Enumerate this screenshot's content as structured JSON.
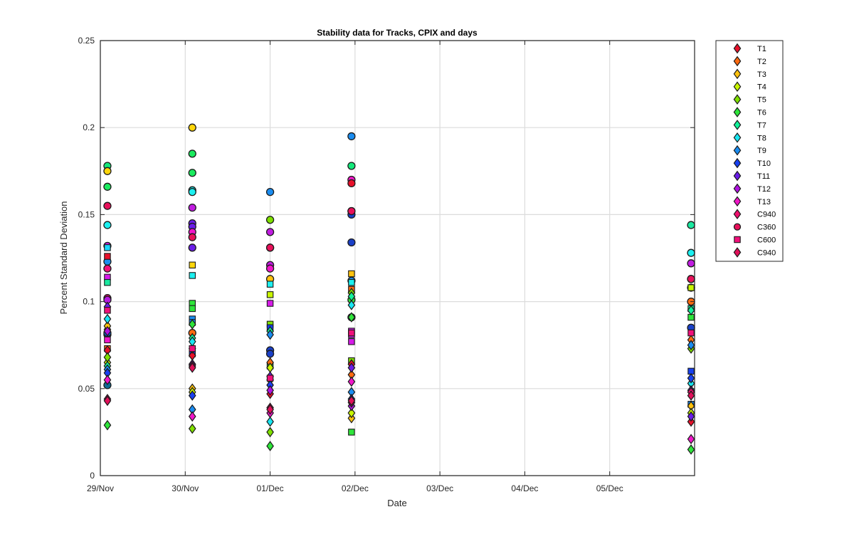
{
  "chart_data": {
    "type": "scatter",
    "title": "Stability data for Tracks, CPIX and days",
    "xlabel": "Date",
    "ylabel": "Percent Standard Deviation",
    "x_axis": {
      "kind": "date",
      "range": [
        "2015-11-29T00:00",
        "2015-12-06T00:00"
      ],
      "ticks": [
        {
          "date": "2015-11-29",
          "label": "29/Nov"
        },
        {
          "date": "2015-11-30",
          "label": "30/Nov"
        },
        {
          "date": "2015-12-01",
          "label": "01/Dec"
        },
        {
          "date": "2015-12-02",
          "label": "02/Dec"
        },
        {
          "date": "2015-12-03",
          "label": "03/Dec"
        },
        {
          "date": "2015-12-04",
          "label": "04/Dec"
        },
        {
          "date": "2015-12-05",
          "label": "05/Dec"
        }
      ]
    },
    "ylim": [
      0,
      0.25
    ],
    "y_ticks": [
      "0",
      "0.05",
      "0.1",
      "0.15",
      "0.2",
      "0.25"
    ],
    "grid": true,
    "legend_position": "outside-right",
    "x_dates": [
      "2015-11-29T02:00",
      "2015-11-30T02:00",
      "2015-12-01T00:00",
      "2015-12-01T23:00",
      "2015-12-05T23:00"
    ],
    "series": [
      {
        "name": "T1",
        "marker": "diamond",
        "color": "#e8102a",
        "values": [
          0.072,
          0.069,
          0.047,
          0.064,
          0.031
        ]
      },
      {
        "name": "T2",
        "marker": "diamond",
        "color": "#ff6a10",
        "values": [
          0.084,
          0.073,
          0.065,
          0.058,
          0.078
        ]
      },
      {
        "name": "T3",
        "marker": "diamond",
        "color": "#ffc20e",
        "values": [
          0.086,
          0.05,
          0.055,
          0.033,
          0.04
        ]
      },
      {
        "name": "T4",
        "marker": "diamond",
        "color": "#c8f500",
        "values": [
          0.065,
          0.048,
          0.062,
          0.036,
          0.036
        ]
      },
      {
        "name": "T5",
        "marker": "diamond",
        "color": "#7fe000",
        "values": [
          0.068,
          0.027,
          0.025,
          0.105,
          0.073
        ]
      },
      {
        "name": "T6",
        "marker": "diamond",
        "color": "#2ee53a",
        "values": [
          0.029,
          0.087,
          0.017,
          0.091,
          0.015
        ]
      },
      {
        "name": "T7",
        "marker": "diamond",
        "color": "#12f29a",
        "values": [
          0.063,
          0.079,
          0.083,
          0.103,
          0.095
        ]
      },
      {
        "name": "T8",
        "marker": "diamond",
        "color": "#19e6f2",
        "values": [
          0.09,
          0.077,
          0.031,
          0.098,
          0.053
        ]
      },
      {
        "name": "T9",
        "marker": "diamond",
        "color": "#1a8cf0",
        "values": [
          0.061,
          0.038,
          0.081,
          0.048,
          0.075
        ]
      },
      {
        "name": "T10",
        "marker": "diamond",
        "color": "#1840f0",
        "values": [
          0.059,
          0.046,
          0.052,
          0.044,
          0.056
        ]
      },
      {
        "name": "T11",
        "marker": "diamond",
        "color": "#6a1de8",
        "values": [
          0.097,
          0.064,
          0.057,
          0.062,
          0.034
        ]
      },
      {
        "name": "T12",
        "marker": "diamond",
        "color": "#b012e0",
        "values": [
          0.083,
          0.064,
          0.049,
          0.04,
          0.049
        ]
      },
      {
        "name": "T13",
        "marker": "diamond",
        "color": "#f016c8",
        "values": [
          0.055,
          0.034,
          0.036,
          0.054,
          0.021
        ]
      },
      {
        "name": "C940",
        "marker": "diamond",
        "color": "#f0106e",
        "values": [
          0.044,
          0.063,
          0.039,
          0.042,
          0.048
        ]
      },
      {
        "name": "C360",
        "marker": "circle",
        "color": "#e8105a",
        "values": [
          0.155,
          0.137,
          0.131,
          0.152,
          0.113
        ]
      },
      {
        "name": "C600",
        "marker": "square",
        "color": "#f0107a",
        "values": [
          0.095,
          0.073,
          0.056,
          0.082,
          0.082
        ]
      },
      {
        "name": "C940",
        "marker": "diamond",
        "color": "#e0105a",
        "values": [
          0.043,
          0.062,
          0.038,
          0.043,
          0.046
        ]
      }
    ],
    "extra_points": [
      {
        "marker": "circle",
        "color": "#0f6a95",
        "x_day": 0,
        "values": [
          0.052
        ]
      },
      {
        "marker": "circle",
        "color": "#0a5fd8",
        "x_day": 0,
        "values": [
          0.081,
          0.082
        ]
      },
      {
        "marker": "circle",
        "color": "#14e87a",
        "x_day": 0,
        "values": [
          0.178
        ]
      },
      {
        "marker": "circle",
        "color": "#1aeb5e",
        "x_day": 0,
        "values": [
          0.166
        ]
      },
      {
        "marker": "circle",
        "color": "#ffd60a",
        "x_day": 0,
        "values": [
          0.175
        ]
      },
      {
        "marker": "circle",
        "color": "#1cf0f0",
        "x_day": 0,
        "values": [
          0.144
        ]
      },
      {
        "marker": "circle",
        "color": "#c01ce0",
        "x_day": 0,
        "values": [
          0.132
        ]
      },
      {
        "marker": "circle",
        "color": "#1a90f0",
        "x_day": 0,
        "values": [
          0.123
        ]
      },
      {
        "marker": "circle",
        "color": "#f0107a",
        "x_day": 0,
        "values": [
          0.119,
          0.102
        ]
      },
      {
        "marker": "circle",
        "color": "#b81ae0",
        "x_day": 0,
        "values": [
          0.101
        ]
      },
      {
        "marker": "square",
        "color": "#e8102a",
        "x_day": 0,
        "values": [
          0.126
        ]
      },
      {
        "marker": "square",
        "color": "#1ad6ff",
        "x_day": 0,
        "values": [
          0.131
        ]
      },
      {
        "marker": "square",
        "color": "#d61ae8",
        "x_day": 0,
        "values": [
          0.114
        ]
      },
      {
        "marker": "square",
        "color": "#1ae8a0",
        "x_day": 0,
        "values": [
          0.111
        ]
      },
      {
        "marker": "square",
        "color": "#ff6a10",
        "x_day": 0,
        "values": [
          0.073
        ]
      },
      {
        "marker": "square",
        "color": "#f016c8",
        "x_day": 0,
        "values": [
          0.078
        ]
      },
      {
        "marker": "circle",
        "color": "#ffd60a",
        "x_day": 1,
        "values": [
          0.2
        ]
      },
      {
        "marker": "circle",
        "color": "#1aeb5e",
        "x_day": 1,
        "values": [
          0.185,
          0.174
        ]
      },
      {
        "marker": "circle",
        "color": "#1cf0f0",
        "x_day": 1,
        "values": [
          0.164,
          0.163
        ]
      },
      {
        "marker": "circle",
        "color": "#c01ce0",
        "x_day": 1,
        "values": [
          0.154
        ]
      },
      {
        "marker": "circle",
        "color": "#6a1de8",
        "x_day": 1,
        "values": [
          0.145,
          0.143
        ]
      },
      {
        "marker": "circle",
        "color": "#f016c8",
        "x_day": 1,
        "values": [
          0.14
        ]
      },
      {
        "marker": "circle",
        "color": "#6a1de8",
        "x_day": 1,
        "values": [
          0.131
        ]
      },
      {
        "marker": "circle",
        "color": "#ff6a10",
        "x_day": 1,
        "values": [
          0.082
        ]
      },
      {
        "marker": "square",
        "color": "#ffd60a",
        "x_day": 1,
        "values": [
          0.121
        ]
      },
      {
        "marker": "square",
        "color": "#1cf0f0",
        "x_day": 1,
        "values": [
          0.115
        ]
      },
      {
        "marker": "square",
        "color": "#2ee53a",
        "x_day": 1,
        "values": [
          0.099,
          0.096
        ]
      },
      {
        "marker": "square",
        "color": "#1a8cf0",
        "x_day": 1,
        "values": [
          0.09,
          0.088
        ]
      },
      {
        "marker": "square",
        "color": "#1840f0",
        "x_day": 1,
        "values": [
          0.07
        ]
      },
      {
        "marker": "circle",
        "color": "#1a8cf0",
        "x_day": 2,
        "values": [
          0.163
        ]
      },
      {
        "marker": "circle",
        "color": "#7fe000",
        "x_day": 2,
        "values": [
          0.147
        ]
      },
      {
        "marker": "circle",
        "color": "#c01ce0",
        "x_day": 2,
        "values": [
          0.14
        ]
      },
      {
        "marker": "circle",
        "color": "#e8105a",
        "x_day": 2,
        "values": [
          0.131
        ]
      },
      {
        "marker": "circle",
        "color": "#c01ce0",
        "x_day": 2,
        "values": [
          0.121
        ]
      },
      {
        "marker": "circle",
        "color": "#f016c8",
        "x_day": 2,
        "values": [
          0.119
        ]
      },
      {
        "marker": "circle",
        "color": "#ffc20e",
        "x_day": 2,
        "values": [
          0.113
        ]
      },
      {
        "marker": "circle",
        "color": "#1a40c8",
        "x_day": 2,
        "values": [
          0.072,
          0.07
        ]
      },
      {
        "marker": "square",
        "color": "#1cf0f0",
        "x_day": 2,
        "values": [
          0.11
        ]
      },
      {
        "marker": "square",
        "color": "#c8f500",
        "x_day": 2,
        "values": [
          0.104
        ]
      },
      {
        "marker": "square",
        "color": "#d61ae8",
        "x_day": 2,
        "values": [
          0.099
        ]
      },
      {
        "marker": "square",
        "color": "#7fe000",
        "x_day": 2,
        "values": [
          0.087
        ]
      },
      {
        "marker": "square",
        "color": "#2ee53a",
        "x_day": 2,
        "values": [
          0.063
        ]
      },
      {
        "marker": "square",
        "color": "#1840f0",
        "x_day": 2,
        "values": [
          0.085
        ]
      },
      {
        "marker": "circle",
        "color": "#1a8cf0",
        "x_day": 3,
        "values": [
          0.195
        ]
      },
      {
        "marker": "circle",
        "color": "#14e87a",
        "x_day": 3,
        "values": [
          0.178
        ]
      },
      {
        "marker": "circle",
        "color": "#f016c8",
        "x_day": 3,
        "values": [
          0.17
        ]
      },
      {
        "marker": "circle",
        "color": "#e8102a",
        "x_day": 3,
        "values": [
          0.168
        ]
      },
      {
        "marker": "circle",
        "color": "#f0106e",
        "x_day": 3,
        "values": [
          0.152
        ]
      },
      {
        "marker": "circle",
        "color": "#1a40c8",
        "x_day": 3,
        "values": [
          0.15,
          0.134
        ]
      },
      {
        "marker": "circle",
        "color": "#1a8cf0",
        "x_day": 3,
        "values": [
          0.112
        ]
      },
      {
        "marker": "circle",
        "color": "#2ee53a",
        "x_day": 3,
        "values": [
          0.101
        ]
      },
      {
        "marker": "circle",
        "color": "#1ae8a0",
        "x_day": 3,
        "values": [
          0.091
        ]
      },
      {
        "marker": "square",
        "color": "#ffc20e",
        "x_day": 3,
        "values": [
          0.116
        ]
      },
      {
        "marker": "square",
        "color": "#1cf0f0",
        "x_day": 3,
        "values": [
          0.111
        ]
      },
      {
        "marker": "square",
        "color": "#ff6a10",
        "x_day": 3,
        "values": [
          0.107
        ]
      },
      {
        "marker": "square",
        "color": "#d61ae8",
        "x_day": 3,
        "values": [
          0.083,
          0.081,
          0.077
        ]
      },
      {
        "marker": "square",
        "color": "#7fe000",
        "x_day": 3,
        "values": [
          0.066
        ]
      },
      {
        "marker": "square",
        "color": "#2ee53a",
        "x_day": 3,
        "values": [
          0.025
        ]
      },
      {
        "marker": "circle",
        "color": "#1ae8a0",
        "x_day": 4,
        "values": [
          0.144
        ]
      },
      {
        "marker": "circle",
        "color": "#1cf0f0",
        "x_day": 4,
        "values": [
          0.128
        ]
      },
      {
        "marker": "circle",
        "color": "#c01ce0",
        "x_day": 4,
        "values": [
          0.122
        ]
      },
      {
        "marker": "circle",
        "color": "#f016c8",
        "x_day": 4,
        "values": [
          0.113
        ]
      },
      {
        "marker": "circle",
        "color": "#ffc20e",
        "x_day": 4,
        "values": [
          0.108
        ]
      },
      {
        "marker": "circle",
        "color": "#ff6a10",
        "x_day": 4,
        "values": [
          0.1
        ]
      },
      {
        "marker": "circle",
        "color": "#1a40c8",
        "x_day": 4,
        "values": [
          0.085
        ]
      },
      {
        "marker": "square",
        "color": "#c8f500",
        "x_day": 4,
        "values": [
          0.108
        ]
      },
      {
        "marker": "square",
        "color": "#1ae8a0",
        "x_day": 4,
        "values": [
          0.096
        ]
      },
      {
        "marker": "square",
        "color": "#2ee53a",
        "x_day": 4,
        "values": [
          0.091
        ]
      },
      {
        "marker": "square",
        "color": "#1840f0",
        "x_day": 4,
        "values": [
          0.06
        ]
      },
      {
        "marker": "square",
        "color": "#1a8cf0",
        "x_day": 4,
        "values": [
          0.041
        ]
      }
    ]
  }
}
